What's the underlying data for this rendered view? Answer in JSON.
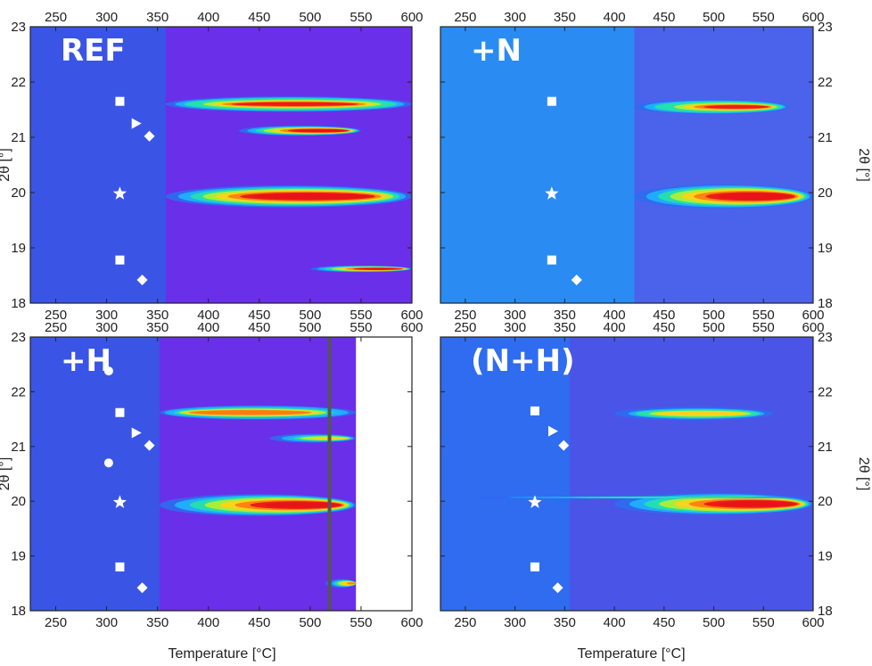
{
  "chart_data": {
    "type": "heatmap",
    "title": "",
    "xlabel": "Temperature [°C]",
    "ylabel": "2θ [°]",
    "xlim": [
      225,
      600
    ],
    "ylim": [
      18,
      23
    ],
    "xticks": [
      "250",
      "300",
      "350",
      "400",
      "450",
      "500",
      "550",
      "600"
    ],
    "yticks": [
      "18",
      "19",
      "20",
      "21",
      "22",
      "23"
    ],
    "colormap": [
      "#3b2bd8",
      "#2f6cf0",
      "#1fb4ff",
      "#25e3a8",
      "#b6f02c",
      "#ffd21a",
      "#ff7a12",
      "#e8121a",
      "#ffffff"
    ],
    "panels": [
      {
        "label": "REF",
        "background": "#3a55e6",
        "transition_temperature": 358,
        "region_after_color": "#6a2fe8",
        "markers": [
          {
            "shape": "square",
            "x": 313,
            "y": 21.65
          },
          {
            "shape": "triangle",
            "x": 329,
            "y": 21.25
          },
          {
            "shape": "diamond",
            "x": 342,
            "y": 21.02
          },
          {
            "shape": "star",
            "x": 313,
            "y": 19.98
          },
          {
            "shape": "square",
            "x": 313,
            "y": 18.78
          },
          {
            "shape": "diamond",
            "x": 335,
            "y": 18.42
          }
        ],
        "bands": [
          {
            "two_theta": 21.6,
            "t_start": 358,
            "t_end": 600,
            "peak": 450,
            "peak_intensity": 0.95,
            "width": 0.14
          },
          {
            "two_theta": 21.12,
            "t_start": 430,
            "t_end": 550,
            "peak": 510,
            "peak_intensity": 1.0,
            "width": 0.09
          },
          {
            "two_theta": 19.93,
            "t_start": 358,
            "t_end": 600,
            "peak": 480,
            "peak_intensity": 1.0,
            "width": 0.2
          },
          {
            "two_theta": 18.62,
            "t_start": 500,
            "t_end": 600,
            "peak": 570,
            "peak_intensity": 1.0,
            "width": 0.06
          }
        ]
      },
      {
        "label": "+N",
        "background": "#2a8cf2",
        "transition_temperature": 420,
        "region_after_color": "#4a63ea",
        "markers": [
          {
            "shape": "square",
            "x": 337,
            "y": 21.65
          },
          {
            "shape": "star",
            "x": 337,
            "y": 19.98
          },
          {
            "shape": "square",
            "x": 337,
            "y": 18.78
          },
          {
            "shape": "diamond",
            "x": 362,
            "y": 18.42
          }
        ],
        "bands": [
          {
            "two_theta": 21.55,
            "t_start": 420,
            "t_end": 575,
            "peak": 520,
            "peak_intensity": 0.95,
            "width": 0.13
          },
          {
            "two_theta": 19.93,
            "t_start": 420,
            "t_end": 600,
            "peak": 540,
            "peak_intensity": 1.0,
            "width": 0.22
          }
        ]
      },
      {
        "label": "+H",
        "background": "#3a55e6",
        "transition_temperature": 352,
        "region_after_color": "#6a2fe8",
        "data_end_temperature": 545,
        "vertical_line_temperature": 519,
        "markers": [
          {
            "shape": "circle",
            "x": 302,
            "y": 22.38
          },
          {
            "shape": "square",
            "x": 313,
            "y": 21.62
          },
          {
            "shape": "triangle",
            "x": 329,
            "y": 21.25
          },
          {
            "shape": "diamond",
            "x": 342,
            "y": 21.02
          },
          {
            "shape": "circle",
            "x": 302,
            "y": 20.7
          },
          {
            "shape": "star",
            "x": 313,
            "y": 19.98
          },
          {
            "shape": "square",
            "x": 313,
            "y": 18.8
          },
          {
            "shape": "diamond",
            "x": 335,
            "y": 18.42
          }
        ],
        "bands": [
          {
            "two_theta": 21.62,
            "t_start": 352,
            "t_end": 545,
            "peak": 400,
            "peak_intensity": 0.85,
            "width": 0.13
          },
          {
            "two_theta": 21.15,
            "t_start": 460,
            "t_end": 545,
            "peak": 520,
            "peak_intensity": 0.6,
            "width": 0.08
          },
          {
            "two_theta": 19.93,
            "t_start": 352,
            "t_end": 545,
            "peak": 500,
            "peak_intensity": 1.0,
            "width": 0.2
          },
          {
            "two_theta": 18.5,
            "t_start": 515,
            "t_end": 545,
            "peak": 545,
            "peak_intensity": 0.8,
            "width": 0.08
          }
        ]
      },
      {
        "label": "(N+H)",
        "background": "#2f6cf0",
        "transition_temperature": 355,
        "region_after_color": "#4a55e8",
        "markers": [
          {
            "shape": "square",
            "x": 320,
            "y": 21.65
          },
          {
            "shape": "triangle",
            "x": 338,
            "y": 21.28
          },
          {
            "shape": "diamond",
            "x": 349,
            "y": 21.02
          },
          {
            "shape": "star",
            "x": 320,
            "y": 19.98
          },
          {
            "shape": "square",
            "x": 320,
            "y": 18.8
          },
          {
            "shape": "diamond",
            "x": 343,
            "y": 18.42
          }
        ],
        "bands": [
          {
            "two_theta": 21.6,
            "t_start": 400,
            "t_end": 560,
            "peak": 470,
            "peak_intensity": 0.7,
            "width": 0.12
          },
          {
            "two_theta": 19.95,
            "t_start": 400,
            "t_end": 600,
            "peak": 550,
            "peak_intensity": 1.0,
            "width": 0.2
          },
          {
            "two_theta": 20.07,
            "t_start": 225,
            "t_end": 600,
            "peak": 450,
            "peak_intensity": 0.35,
            "width": 0.02
          }
        ]
      }
    ]
  }
}
